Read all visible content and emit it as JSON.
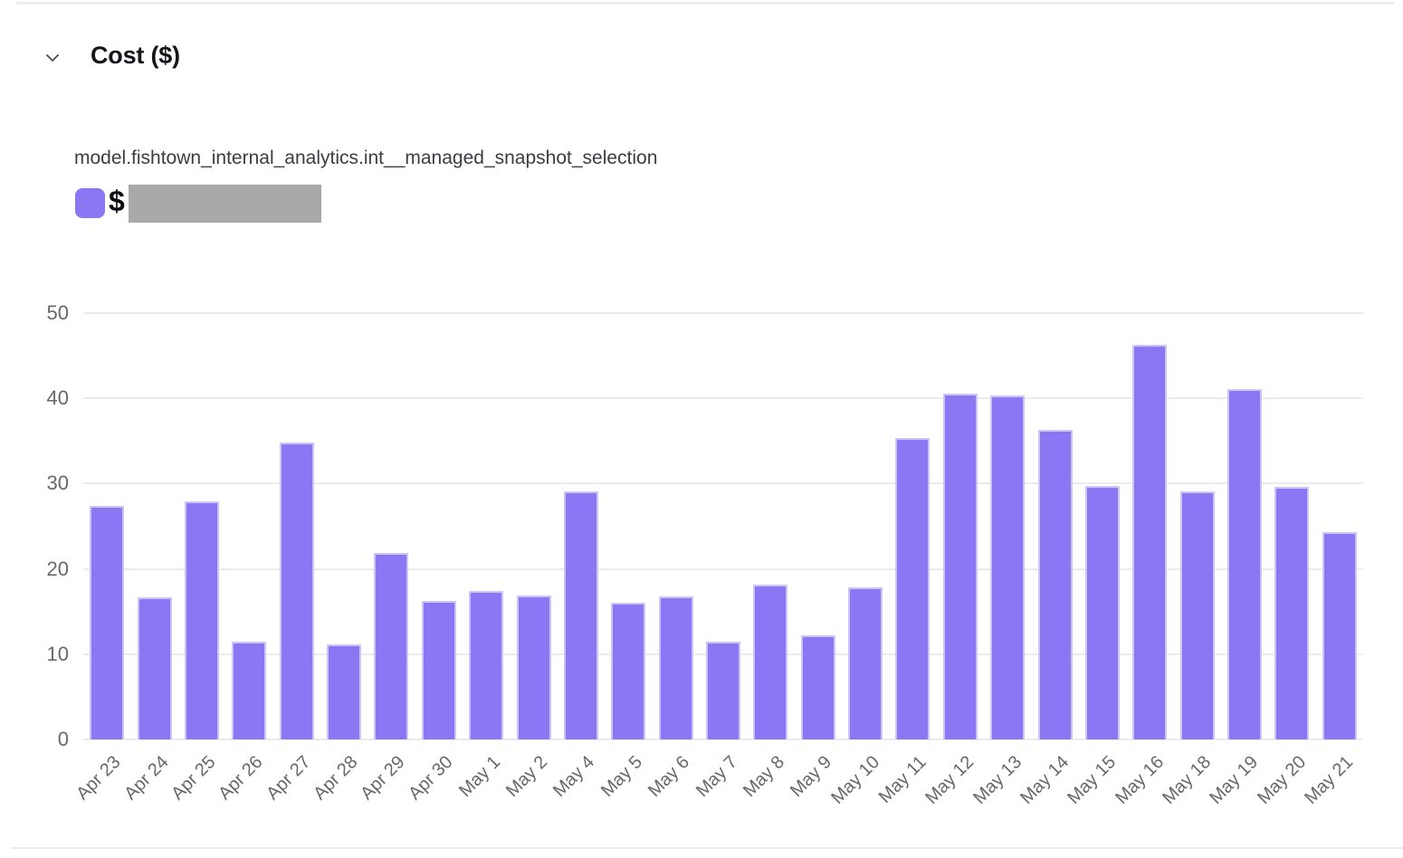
{
  "header": {
    "title": "Cost ($)"
  },
  "chart_data": {
    "type": "bar",
    "title": "model.fishtown_internal_analytics.int__managed_snapshot_selection",
    "legend": {
      "prefix": "$",
      "value_hidden": true,
      "redaction_color": "#a9a9a9"
    },
    "legend_position": "top-left",
    "grid": true,
    "bar_color": "#8b76f4",
    "xlabel": "",
    "ylabel": "",
    "ylim": [
      0,
      50
    ],
    "yticks": [
      0,
      10,
      20,
      30,
      40,
      50
    ],
    "categories": [
      "Apr 23",
      "Apr 24",
      "Apr 25",
      "Apr 26",
      "Apr 27",
      "Apr 28",
      "Apr 29",
      "Apr 30",
      "May 1",
      "May 2",
      "May 4",
      "May 5",
      "May 6",
      "May 7",
      "May 8",
      "May 9",
      "May 10",
      "May 11",
      "May 12",
      "May 13",
      "May 14",
      "May 15",
      "May 16",
      "May 18",
      "May 19",
      "May 20",
      "May 21"
    ],
    "values": [
      27.4,
      16.7,
      27.9,
      11.5,
      34.8,
      11.1,
      21.9,
      16.2,
      17.4,
      16.9,
      29.1,
      16.0,
      16.8,
      11.5,
      18.1,
      12.2,
      17.8,
      35.4,
      40.5,
      40.3,
      36.3,
      29.7,
      46.3,
      29.1,
      41.1,
      29.6,
      24.3
    ]
  }
}
